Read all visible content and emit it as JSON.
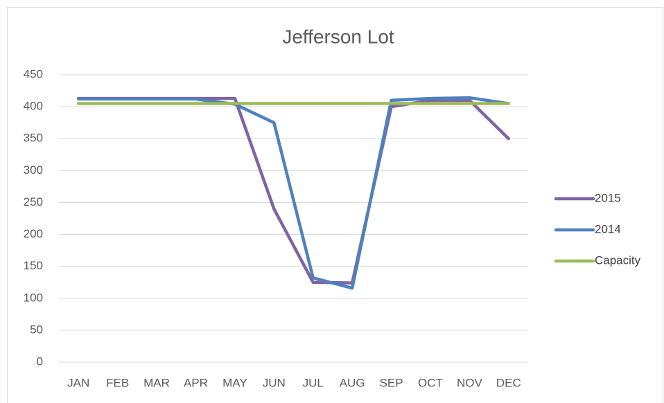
{
  "chart_data": {
    "type": "line",
    "title": "Jefferson Lot",
    "categories": [
      "JAN",
      "FEB",
      "MAR",
      "APR",
      "MAY",
      "JUN",
      "JUL",
      "AUG",
      "SEP",
      "OCT",
      "NOV",
      "DEC"
    ],
    "series": [
      {
        "name": "2015",
        "color": "#8064a2",
        "values": [
          413,
          413,
          413,
          413,
          413,
          240,
          125,
          124,
          400,
          410,
          410,
          350
        ]
      },
      {
        "name": "2014",
        "color": "#4f81bd",
        "values": [
          412,
          412,
          412,
          412,
          404,
          375,
          132,
          116,
          410,
          413,
          414,
          405
        ]
      },
      {
        "name": "Capacity",
        "color": "#9bbb59",
        "values": [
          405,
          405,
          405,
          405,
          405,
          405,
          405,
          405,
          405,
          405,
          405,
          405
        ]
      }
    ],
    "ylim": [
      0,
      450
    ],
    "yticks": [
      0,
      50,
      100,
      150,
      200,
      250,
      300,
      350,
      400,
      450
    ],
    "grid": true,
    "legend": "right"
  }
}
